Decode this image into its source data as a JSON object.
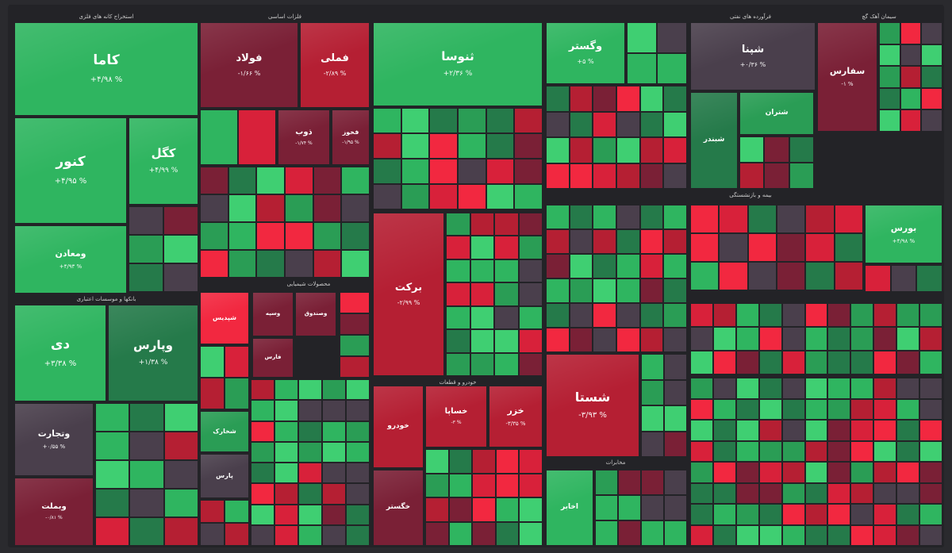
{
  "chart_data": {
    "type": "heatmap",
    "colors": {
      "strong_green": "#2fb560",
      "green": "#2a9d55",
      "light_green": "#3fcf72",
      "dark_green": "#257a4a",
      "neutral": "#4a3f4c",
      "dark_red": "#7a2036",
      "red": "#b51f33",
      "strong_red": "#d8213a",
      "bright_red": "#f22840"
    },
    "sectors": [
      {
        "name": "استخراج کانه های فلزی"
      },
      {
        "name": "فلزات اساسی"
      },
      {
        "name": "فرآورده های نفتی"
      },
      {
        "name": "سیمان آهک گچ"
      },
      {
        "name": "محصولات شیمیایی"
      },
      {
        "name": "بانکها و موسسات اعتباری"
      },
      {
        "name": "خودرو و قطعات"
      },
      {
        "name": "مخابرات"
      },
      {
        "name": "بیمه و بازنشستگی"
      }
    ],
    "tiles": [
      {
        "symbol": "کاما",
        "change": "% ۴/۹۸+",
        "color": "strong_green"
      },
      {
        "symbol": "کنور",
        "change": "% ۴/۹۵+",
        "color": "strong_green"
      },
      {
        "symbol": "کگل",
        "change": "% ۴/۹۹+",
        "color": "strong_green"
      },
      {
        "symbol": "ومعادن",
        "change": "% ۴/۹۳+",
        "color": "strong_green"
      },
      {
        "symbol": "فولاد",
        "change": "% ۱/۶۶-",
        "color": "dark_red"
      },
      {
        "symbol": "فملی",
        "change": "% ۲/۸۹-",
        "color": "red"
      },
      {
        "symbol": "ذوب",
        "change": "% ۱/۷۴-",
        "color": "dark_red"
      },
      {
        "symbol": "فخوز",
        "change": "% ۱/۹۵-",
        "color": "dark_red"
      },
      {
        "symbol": "شپنا",
        "change": "% ۰/۳۶+",
        "color": "neutral"
      },
      {
        "symbol": "شبندر",
        "change": "",
        "color": "dark_green"
      },
      {
        "symbol": "شتران",
        "change": "",
        "color": "green"
      },
      {
        "symbol": "ثنوسا",
        "change": "% ۲/۳۶+",
        "color": "strong_green"
      },
      {
        "symbol": "وگستر",
        "change": "% ۵+",
        "color": "strong_green"
      },
      {
        "symbol": "سفارس",
        "change": "% ۱-",
        "color": "dark_red"
      },
      {
        "symbol": "دی",
        "change": "% ۳/۳۸+",
        "color": "strong_green"
      },
      {
        "symbol": "وپارس",
        "change": "% ۱/۳۸+",
        "color": "dark_green"
      },
      {
        "symbol": "وتجارت",
        "change": "% ۰/۵۵+",
        "color": "neutral"
      },
      {
        "symbol": "وبملت",
        "change": "% ۰/۸۱-",
        "color": "dark_red"
      },
      {
        "symbol": "برکت",
        "change": "% ۲/۹۹-",
        "color": "red"
      },
      {
        "symbol": "شستا",
        "change": "% ۳/۹۳-",
        "color": "red"
      },
      {
        "symbol": "خساپا",
        "change": "% ۳-",
        "color": "red"
      },
      {
        "symbol": "خزر",
        "change": "% ۳/۳۵-",
        "color": "red"
      },
      {
        "symbol": "خودرو",
        "change": "",
        "color": "red"
      },
      {
        "symbol": "خگستر",
        "change": "",
        "color": "dark_red"
      },
      {
        "symbol": "اخابر",
        "change": "",
        "color": "strong_green"
      },
      {
        "symbol": "بورس",
        "change": "% ۴/۹۸+",
        "color": "strong_green"
      },
      {
        "symbol": "شپدیس",
        "change": "",
        "color": "bright_red"
      },
      {
        "symbol": "وسپه",
        "change": "",
        "color": "dark_red"
      },
      {
        "symbol": "وصندوق",
        "change": "",
        "color": "dark_red"
      },
      {
        "symbol": "پارس",
        "change": "",
        "color": "neutral"
      },
      {
        "symbol": "شخارک",
        "change": "",
        "color": "green"
      },
      {
        "symbol": "فارس",
        "change": "",
        "color": "dark_red"
      }
    ]
  }
}
